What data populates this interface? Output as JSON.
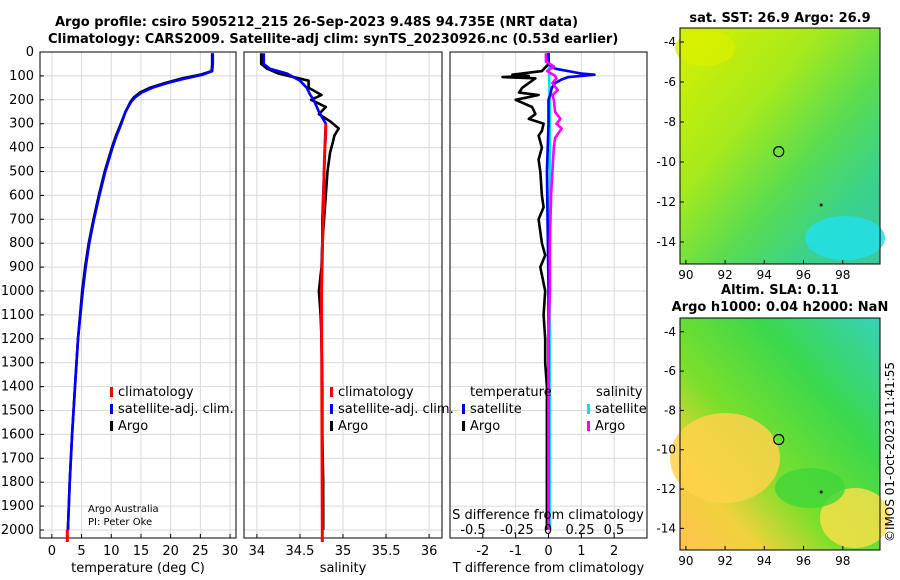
{
  "header": {
    "title_line1": "Argo profile: csiro 5905212_215 26-Sep-2023 9.48S 94.735E (NRT data)",
    "title_line2": "Climatology: CARS2009. Satellite-adj clim: synTS_20230926.nc (0.53d earlier)"
  },
  "credits": {
    "line1": "Argo Australia",
    "line2": "PI: Peter Oke",
    "imos": "©IMOS 01-Oct-2023 11:41:55"
  },
  "colors": {
    "argo": "#000000",
    "climatology": "#ff0000",
    "satellite_adj": "#0000ff",
    "temp_satellite": "#0000ff",
    "sal_satellite": "#00e5ee",
    "sal_argo": "#ff00ff",
    "grid": "#d9d9d9"
  },
  "chart_data": [
    {
      "id": "temperature",
      "type": "line",
      "xlabel": "temperature (deg C)",
      "xlim": [
        -2,
        31
      ],
      "xticks": [
        "0",
        "5",
        "10",
        "15",
        "20",
        "25",
        "30"
      ],
      "ylim": [
        0,
        2050
      ],
      "yticks": [
        "0",
        "100",
        "200",
        "300",
        "400",
        "500",
        "600",
        "700",
        "800",
        "900",
        "1000",
        "1100",
        "1200",
        "1300",
        "1400",
        "1500",
        "1600",
        "1700",
        "1800",
        "1900",
        "2000"
      ],
      "legend": [
        "climatology",
        "satellite-adj. clim.",
        "Argo"
      ],
      "series": [
        {
          "name": "Argo",
          "depth": [
            5,
            50,
            80,
            95,
            110,
            130,
            150,
            170,
            190,
            210,
            250,
            300,
            350,
            400,
            500,
            600,
            700,
            800,
            900,
            1000,
            1200,
            1400,
            1600,
            1800,
            2000
          ],
          "values": [
            27,
            27,
            26.9,
            25,
            22,
            19,
            16.5,
            14.8,
            13.8,
            13.2,
            12.4,
            11.6,
            10.8,
            10.1,
            8.9,
            7.9,
            7.0,
            6.2,
            5.6,
            5.1,
            4.4,
            3.9,
            3.4,
            3.0,
            2.7
          ]
        },
        {
          "name": "satellite-adj. clim.",
          "depth": [
            5,
            50,
            80,
            95,
            110,
            130,
            150,
            170,
            190,
            210,
            250,
            300,
            350,
            400,
            500,
            600,
            700,
            800,
            900,
            1000,
            1200,
            1400,
            1600,
            1800,
            2000
          ],
          "values": [
            27.1,
            27.1,
            27.0,
            25.4,
            22.6,
            19.4,
            16.9,
            15.1,
            14.0,
            13.3,
            12.4,
            11.7,
            10.9,
            10.2,
            9.0,
            8.0,
            7.1,
            6.3,
            5.7,
            5.2,
            4.4,
            3.9,
            3.4,
            3.0,
            2.7
          ]
        },
        {
          "name": "climatology",
          "depth": [
            2000,
            2050
          ],
          "values": [
            2.6,
            2.6
          ]
        }
      ]
    },
    {
      "id": "salinity",
      "type": "line",
      "xlabel": "salinity",
      "xlim": [
        33.85,
        36.15
      ],
      "xticks": [
        "34",
        "34.5",
        "35",
        "35.5",
        "36"
      ],
      "ylim": [
        0,
        2050
      ],
      "legend": [
        "climatology",
        "satellite-adj. clim.",
        "Argo"
      ],
      "series": [
        {
          "name": "Argo",
          "depth": [
            5,
            50,
            70,
            90,
            120,
            150,
            180,
            200,
            230,
            260,
            290,
            320,
            350,
            380,
            420,
            500,
            600,
            700,
            800,
            900,
            1000,
            1100,
            1200,
            1400,
            1600,
            1800,
            2000
          ],
          "values": [
            34.05,
            34.05,
            34.12,
            34.25,
            34.6,
            34.6,
            34.75,
            34.63,
            34.8,
            34.72,
            34.85,
            34.95,
            34.9,
            34.88,
            34.85,
            34.82,
            34.8,
            34.78,
            34.76,
            34.75,
            34.72,
            34.74,
            34.75,
            34.76,
            34.76,
            34.77,
            34.77
          ]
        },
        {
          "name": "satellite-adj. clim.",
          "depth": [
            5,
            50,
            70,
            90,
            120,
            150,
            180,
            200,
            250,
            300,
            350,
            400,
            500,
            600,
            700,
            800,
            1000,
            1200,
            1400,
            1600,
            1800,
            2000
          ],
          "values": [
            34.08,
            34.08,
            34.15,
            34.35,
            34.5,
            34.58,
            34.62,
            34.66,
            34.72,
            34.8,
            34.8,
            34.79,
            34.78,
            34.77,
            34.76,
            34.76,
            34.75,
            34.75,
            34.76,
            34.76,
            34.76,
            34.76
          ]
        },
        {
          "name": "climatology",
          "depth": [
            300,
            400,
            500,
            1000,
            2000,
            2050
          ],
          "values": [
            34.8,
            34.79,
            34.78,
            34.75,
            34.76,
            34.76
          ]
        }
      ]
    },
    {
      "id": "difference",
      "type": "line",
      "xlabel": "T difference from climatology",
      "xlabel_top": "S difference from climatology",
      "xlim": [
        -3,
        3
      ],
      "xticks": [
        "-2",
        "-1",
        "0",
        "1",
        "2"
      ],
      "s_xticks": [
        "-0.5",
        "-0.25",
        "0",
        "0.25",
        "0.5"
      ],
      "legend_temperature": [
        "temperature",
        "satellite",
        "Argo"
      ],
      "legend_salinity": [
        "salinity",
        "satellite",
        "Argo"
      ],
      "series": [
        {
          "name": "temperature satellite",
          "depth": [
            5,
            50,
            70,
            90,
            95,
            100,
            105,
            115,
            130,
            150,
            180,
            200,
            250,
            300,
            500,
            1000,
            1500,
            2000
          ],
          "values": [
            0,
            0,
            0.2,
            1,
            1.4,
            1.0,
            0.6,
            0.4,
            0.2,
            0.1,
            0.05,
            0,
            0,
            0,
            -0.05,
            0,
            0,
            0
          ]
        },
        {
          "name": "temperature Argo",
          "depth": [
            5,
            50,
            80,
            95,
            100,
            105,
            110,
            130,
            150,
            170,
            180,
            200,
            230,
            260,
            280,
            300,
            330,
            350,
            400,
            450,
            500,
            600,
            650,
            700,
            800,
            850,
            900,
            1000,
            1100,
            1200,
            1300,
            1400,
            1500,
            1600,
            1700,
            1800,
            1900,
            2000
          ],
          "values": [
            0,
            0,
            -0.2,
            -1.1,
            -0.6,
            -1.4,
            -0.4,
            -0.6,
            -0.8,
            -0.9,
            -0.3,
            -1.0,
            -0.5,
            -0.4,
            -0.6,
            -0.15,
            -0.2,
            -0.3,
            -0.2,
            -0.3,
            -0.25,
            -0.2,
            -0.15,
            -0.3,
            -0.2,
            -0.1,
            -0.25,
            -0.1,
            -0.15,
            -0.1,
            -0.1,
            -0.05,
            -0.05,
            -0.05,
            -0.05,
            -0.05,
            -0.05,
            -0.05
          ]
        },
        {
          "name": "salinity satellite",
          "depth": [
            5,
            200,
            500,
            1000,
            1500,
            2000
          ],
          "values": [
            0,
            0.01,
            0.01,
            0.01,
            0.01,
            0.01
          ]
        },
        {
          "name": "salinity Argo",
          "depth": [
            5,
            40,
            60,
            80,
            100,
            110,
            130,
            160,
            180,
            200,
            250,
            280,
            300,
            320,
            360,
            400,
            500,
            600,
            800,
            1000,
            1200,
            1400,
            1600,
            1800,
            2000
          ],
          "values": [
            -0.02,
            -0.02,
            0.04,
            -0.01,
            0.05,
            0.06,
            0.03,
            0.07,
            0.03,
            0.04,
            0.05,
            0.09,
            0.06,
            0.1,
            0.05,
            0.04,
            0.03,
            0.02,
            0.01,
            0.01,
            0.0,
            0.0,
            0.0,
            0.0,
            0.0
          ]
        }
      ]
    },
    {
      "id": "sst_map",
      "type": "heatmap",
      "title": "sat. SST: 26.9 Argo: 26.9",
      "xticks": [
        "90",
        "92",
        "94",
        "96",
        "98"
      ],
      "yticks": [
        "-4",
        "-6",
        "-8",
        "-10",
        "-12",
        "-14"
      ],
      "xlim": [
        89.7,
        99.9
      ],
      "ylim": [
        -15.1,
        -3.3
      ],
      "float_position": [
        94.735,
        -9.48
      ]
    },
    {
      "id": "sla_map",
      "type": "heatmap",
      "title_line1": "Altim. SLA: 0.11",
      "title_line2": "Argo h1000: 0.04 h2000: NaN",
      "xticks": [
        "90",
        "92",
        "94",
        "96",
        "98"
      ],
      "yticks": [
        "-4",
        "-6",
        "-8",
        "-10",
        "-12",
        "-14"
      ],
      "xlim": [
        89.7,
        99.9
      ],
      "ylim": [
        -15.1,
        -3.3
      ],
      "float_position": [
        94.735,
        -9.48
      ]
    }
  ]
}
